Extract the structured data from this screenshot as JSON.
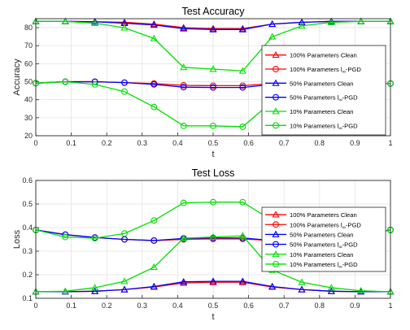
{
  "chart_data": [
    {
      "type": "line",
      "title": "Test Accuracy",
      "xlabel": "t",
      "ylabel": "Accuracy",
      "xlim": [
        0,
        1
      ],
      "ylim": [
        20,
        85
      ],
      "xticks": [
        "0",
        "0.1",
        "0.2",
        "0.3",
        "0.4",
        "0.5",
        "0.6",
        "0.7",
        "0.8",
        "0.9",
        "1"
      ],
      "yticks": [
        "20",
        "30",
        "40",
        "50",
        "60",
        "70",
        "80"
      ],
      "grid": true,
      "legend_position": "right",
      "x": [
        0,
        0.0833,
        0.1667,
        0.25,
        0.3333,
        0.4167,
        0.5,
        0.5833,
        0.6667,
        0.75,
        0.8333,
        0.9167,
        1
      ],
      "series": [
        {
          "name": "100% Parameters Clean",
          "color": "#ff0000",
          "marker": "triangle",
          "values": [
            83.5,
            83.5,
            83.3,
            83.0,
            82.0,
            80.0,
            79.5,
            79.5,
            82.0,
            83.0,
            83.5,
            83.5,
            83.5
          ]
        },
        {
          "name": "100% Parameters l∞-PGD",
          "color": "#ff0000",
          "marker": "circle",
          "values": [
            49.2,
            50.0,
            50.0,
            49.5,
            49.0,
            48.0,
            47.8,
            47.8,
            49.0,
            49.5,
            49.5,
            49.5,
            49.0
          ]
        },
        {
          "name": "50% Parameters Clean",
          "color": "#0000ff",
          "marker": "triangle",
          "values": [
            83.5,
            83.5,
            83.3,
            82.5,
            81.5,
            79.5,
            79.0,
            79.0,
            82.0,
            83.0,
            83.5,
            83.5,
            83.5
          ]
        },
        {
          "name": "50% Parameters l∞-PGD",
          "color": "#0000ff",
          "marker": "circle",
          "values": [
            49.2,
            50.0,
            50.0,
            49.5,
            48.5,
            47.0,
            46.8,
            46.8,
            48.5,
            49.5,
            49.5,
            49.5,
            49.0
          ]
        },
        {
          "name": "10% Parameters Clean",
          "color": "#00e000",
          "marker": "triangle",
          "values": [
            83.5,
            83.5,
            82.5,
            80.0,
            74.0,
            58.0,
            57.0,
            56.0,
            75.0,
            81.0,
            83.0,
            83.5,
            83.5
          ]
        },
        {
          "name": "10% Parameters l∞-PGD",
          "color": "#00e000",
          "marker": "circle",
          "values": [
            49.2,
            50.0,
            48.5,
            44.5,
            36.0,
            25.5,
            25.5,
            25.0,
            39.0,
            46.0,
            49.0,
            49.5,
            49.0
          ]
        }
      ]
    },
    {
      "type": "line",
      "title": "Test Loss",
      "xlabel": "t",
      "ylabel": "Loss",
      "xlim": [
        0,
        1
      ],
      "ylim": [
        0.1,
        0.6
      ],
      "xticks": [
        "0",
        "0.1",
        "0.2",
        "0.3",
        "0.4",
        "0.5",
        "0.6",
        "0.7",
        "0.8",
        "0.9",
        "1"
      ],
      "yticks": [
        "0.1",
        "0.2",
        "0.3",
        "0.4",
        "0.5",
        "0.6"
      ],
      "grid": true,
      "legend_position": "right",
      "x": [
        0,
        0.0833,
        0.1667,
        0.25,
        0.3333,
        0.4167,
        0.5,
        0.5833,
        0.6667,
        0.75,
        0.8333,
        0.9167,
        1
      ],
      "series": [
        {
          "name": "100% Parameters Clean",
          "color": "#ff0000",
          "marker": "triangle",
          "values": [
            0.128,
            0.128,
            0.13,
            0.137,
            0.148,
            0.165,
            0.168,
            0.168,
            0.148,
            0.137,
            0.13,
            0.128,
            0.128
          ]
        },
        {
          "name": "100% Parameters l∞-PGD",
          "color": "#ff0000",
          "marker": "circle",
          "values": [
            0.39,
            0.37,
            0.358,
            0.35,
            0.345,
            0.35,
            0.352,
            0.352,
            0.345,
            0.35,
            0.358,
            0.37,
            0.39
          ]
        },
        {
          "name": "50% Parameters Clean",
          "color": "#0000ff",
          "marker": "triangle",
          "values": [
            0.128,
            0.128,
            0.13,
            0.137,
            0.15,
            0.17,
            0.172,
            0.172,
            0.15,
            0.137,
            0.13,
            0.128,
            0.128
          ]
        },
        {
          "name": "50% Parameters l∞-PGD",
          "color": "#0000ff",
          "marker": "circle",
          "values": [
            0.39,
            0.37,
            0.358,
            0.35,
            0.345,
            0.354,
            0.356,
            0.356,
            0.345,
            0.35,
            0.358,
            0.37,
            0.39
          ]
        },
        {
          "name": "10% Parameters Clean",
          "color": "#00e000",
          "marker": "triangle",
          "values": [
            0.128,
            0.13,
            0.145,
            0.172,
            0.232,
            0.355,
            0.36,
            0.365,
            0.22,
            0.168,
            0.145,
            0.132,
            0.128
          ]
        },
        {
          "name": "10% Parameters l∞-PGD",
          "color": "#00e000",
          "marker": "circle",
          "values": [
            0.39,
            0.36,
            0.355,
            0.375,
            0.43,
            0.505,
            0.508,
            0.508,
            0.43,
            0.375,
            0.355,
            0.36,
            0.39
          ]
        }
      ]
    }
  ]
}
